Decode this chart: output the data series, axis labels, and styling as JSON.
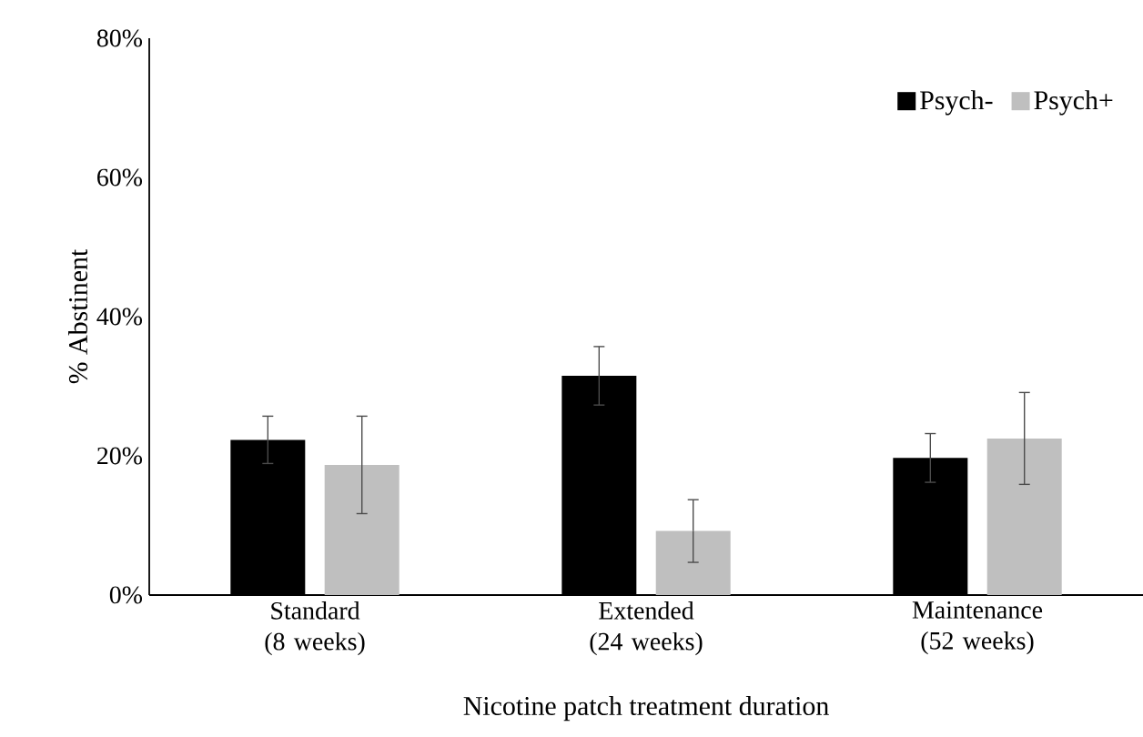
{
  "chart_data": {
    "type": "bar",
    "xlabel": "Nicotine patch treatment duration",
    "ylabel": "% Abstinent",
    "categories": [
      "Standard (8 weeks)",
      "Extended (24 weeks)",
      "Maintenance (52 weeks)"
    ],
    "series": [
      {
        "name": "Psych-",
        "color": "#000000",
        "values": [
          22.3,
          31.5,
          19.7
        ],
        "errors": [
          3.4,
          4.2,
          3.5
        ]
      },
      {
        "name": "Psych+",
        "color": "#bfbfbf",
        "values": [
          18.7,
          9.2,
          22.5
        ],
        "errors": [
          7.0,
          4.5,
          6.6
        ]
      }
    ],
    "ylim": [
      0,
      80
    ],
    "yticks": [
      {
        "value": 0,
        "label": "0%"
      },
      {
        "value": 20,
        "label": "20%"
      },
      {
        "value": 40,
        "label": "40%"
      },
      {
        "value": 60,
        "label": "60%"
      },
      {
        "value": 80,
        "label": "80%"
      }
    ],
    "grid": false,
    "legend": "top right"
  }
}
